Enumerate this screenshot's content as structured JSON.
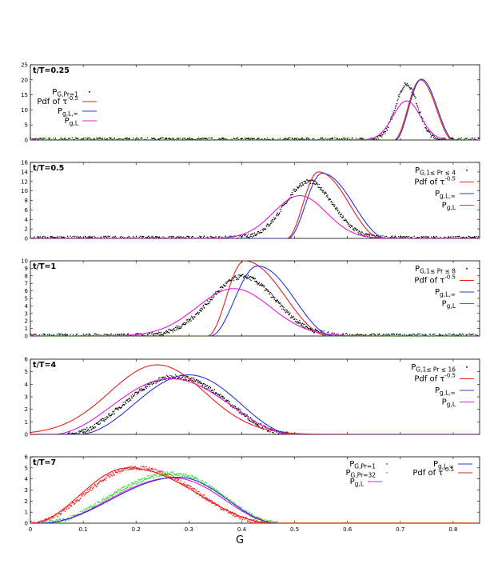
{
  "figure": {
    "xlabel": "G"
  },
  "chart_data": [
    {
      "type": "line",
      "title": "t/T=0.25",
      "xlim": [
        0,
        0.85
      ],
      "ylim": [
        0,
        25
      ],
      "yticks": [
        0,
        5,
        10,
        15,
        20,
        25
      ],
      "legend_position": "top-left",
      "series": [
        {
          "key": "dots",
          "name": "P",
          "sub": "G,Pr=1",
          "color": "#000000",
          "style": "dots",
          "shape": "gauss",
          "mu": 0.712,
          "sigma": 0.021,
          "peak": 18.5
        },
        {
          "key": "tau",
          "name": "Pdf of τ",
          "sup": "-0.5",
          "color": "#e8211c",
          "style": "line",
          "shape": "skew",
          "x0": 0.688,
          "mu": 0.738,
          "x1": 0.8,
          "peak": 20.0
        },
        {
          "key": "linf",
          "name": "P",
          "sub": "g,L,∞",
          "color": "#2a35d8",
          "style": "line",
          "shape": "skew",
          "x0": 0.69,
          "mu": 0.74,
          "x1": 0.802,
          "peak": 20.2
        },
        {
          "key": "gl",
          "name": "P",
          "sub": "g,L",
          "color": "#e21ae0",
          "style": "line",
          "shape": "gauss",
          "mu": 0.712,
          "sigma": 0.026,
          "peak": 13.0
        }
      ]
    },
    {
      "type": "line",
      "title": "t/T=0.5",
      "xlim": [
        0,
        0.85
      ],
      "ylim": [
        0,
        16
      ],
      "yticks": [
        0,
        2,
        4,
        6,
        8,
        10,
        12,
        14,
        16
      ],
      "legend_position": "top-right",
      "series": [
        {
          "key": "dots",
          "name": "P",
          "sub": "G,1≤ Pr ≤ 4",
          "color": "#000000",
          "style": "dots",
          "shape": "gauss",
          "mu": 0.527,
          "sigma": 0.045,
          "peak": 12.0
        },
        {
          "key": "tau",
          "name": "Pdf of τ",
          "sup": "-0.5",
          "color": "#e8211c",
          "style": "line",
          "shape": "skew",
          "x0": 0.485,
          "mu": 0.545,
          "x1": 0.665,
          "peak": 14.0
        },
        {
          "key": "linf",
          "name": "P",
          "sub": "g,L,∞",
          "color": "#2a35d8",
          "style": "line",
          "shape": "skew",
          "x0": 0.487,
          "mu": 0.552,
          "x1": 0.675,
          "peak": 13.7
        },
        {
          "key": "gl",
          "name": "P",
          "sub": "g,L",
          "color": "#e21ae0",
          "style": "line",
          "shape": "gauss",
          "mu": 0.51,
          "sigma": 0.05,
          "peak": 9.0
        }
      ]
    },
    {
      "type": "line",
      "title": "t/T=1",
      "xlim": [
        0,
        0.85
      ],
      "ylim": [
        0,
        10
      ],
      "yticks": [
        0,
        1,
        2,
        3,
        4,
        5,
        6,
        7,
        8,
        9,
        10
      ],
      "legend_position": "top-right",
      "series": [
        {
          "key": "dots",
          "name": "P",
          "sub": "G,1≤ Pr ≤ 8",
          "color": "#000000",
          "style": "dots",
          "shape": "gauss",
          "mu": 0.402,
          "sigma": 0.062,
          "peak": 7.9
        },
        {
          "key": "tau",
          "name": "Pdf of τ",
          "sup": "-0.5",
          "color": "#e8211c",
          "style": "line",
          "shape": "skew",
          "x0": 0.335,
          "mu": 0.405,
          "x1": 0.565,
          "peak": 10.0
        },
        {
          "key": "linf",
          "name": "P",
          "sub": "g,L,∞",
          "color": "#2a35d8",
          "style": "line",
          "shape": "skew",
          "x0": 0.34,
          "mu": 0.43,
          "x1": 0.575,
          "peak": 9.3
        },
        {
          "key": "gl",
          "name": "P",
          "sub": "g,L",
          "color": "#e21ae0",
          "style": "line",
          "shape": "gauss",
          "mu": 0.385,
          "sigma": 0.07,
          "peak": 6.3
        }
      ]
    },
    {
      "type": "line",
      "title": "t/T=4",
      "xlim": [
        0,
        0.85
      ],
      "ylim": [
        0,
        6
      ],
      "yticks": [
        0,
        1,
        2,
        3,
        4,
        5,
        6
      ],
      "legend_position": "top-right",
      "series": [
        {
          "key": "dots",
          "name": "P",
          "sub": "G,1≤ Pr ≤ 16",
          "color": "#000000",
          "style": "dots",
          "shape": "skew",
          "x0": 0.07,
          "mu": 0.275,
          "x1": 0.49,
          "peak": 4.6
        },
        {
          "key": "tau",
          "name": "Pdf of τ",
          "sup": "-0.5",
          "color": "#e8211c",
          "style": "line",
          "shape": "gauss",
          "mu": 0.24,
          "sigma": 0.09,
          "peak": 5.55
        },
        {
          "key": "linf",
          "name": "P",
          "sub": "g,L,∞",
          "color": "#2a35d8",
          "style": "line",
          "shape": "skew",
          "x0": 0.09,
          "mu": 0.3,
          "x1": 0.5,
          "peak": 4.75
        },
        {
          "key": "gl",
          "name": "P",
          "sub": "g,L",
          "color": "#e21ae0",
          "style": "line",
          "shape": "skew",
          "x0": 0.04,
          "mu": 0.265,
          "x1": 0.5,
          "peak": 4.45
        }
      ]
    },
    {
      "type": "line",
      "title": "t/T=7",
      "xlim": [
        0,
        0.85
      ],
      "ylim": [
        0,
        6
      ],
      "yticks": [
        0,
        1,
        2,
        3,
        4,
        5,
        6
      ],
      "legend_position": "top-right",
      "series": [
        {
          "key": "dots_pr1",
          "name": "P",
          "sub": "G,Pr=1",
          "color": "#e8211c",
          "style": "dots",
          "shape": "skew",
          "x0": 0.0,
          "mu": 0.2,
          "x1": 0.45,
          "peak": 5.0
        },
        {
          "key": "dots_pr32",
          "name": "P",
          "sub": "G,Pr=32",
          "color": "#2ad62a",
          "style": "dots",
          "shape": "skew",
          "x0": 0.02,
          "mu": 0.27,
          "x1": 0.47,
          "peak": 4.5
        },
        {
          "key": "gl",
          "name": "P",
          "sub": "g,L",
          "color": "#e21ae0",
          "style": "line",
          "shape": "skew",
          "x0": 0.02,
          "mu": 0.27,
          "x1": 0.47,
          "peak": 4.1
        },
        {
          "key": "linf",
          "name": "P",
          "sub": "g,L,∞",
          "color": "#2a35d8",
          "style": "line",
          "shape": "skew",
          "x0": 0.02,
          "mu": 0.28,
          "x1": 0.47,
          "peak": 4.15
        },
        {
          "key": "tau",
          "name": "Pdf of τ",
          "sup": "-0.5",
          "color": "#e8211c",
          "style": "line",
          "shape": "skew",
          "x0": 0.0,
          "mu": 0.185,
          "x1": 0.46,
          "peak": 5.0
        }
      ]
    }
  ],
  "x_ticks": [
    "0",
    "0.1",
    "0.2",
    "0.3",
    "0.4",
    "0.5",
    "0.6",
    "0.7",
    "0.8"
  ]
}
